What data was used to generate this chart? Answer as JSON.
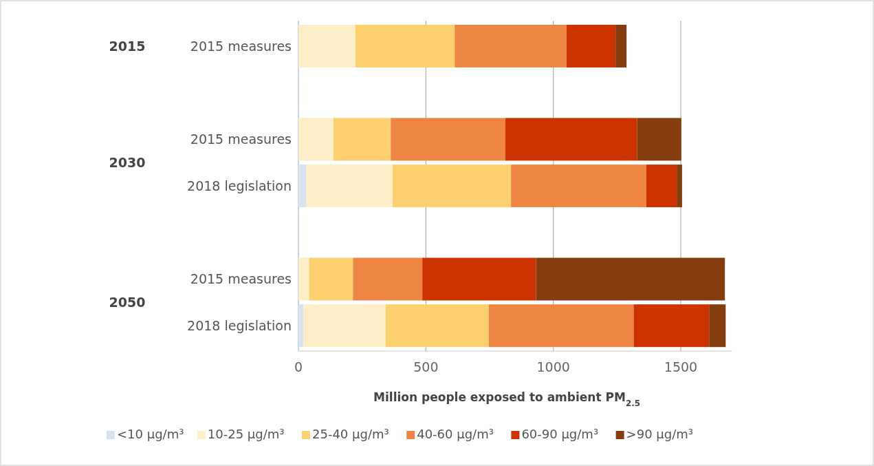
{
  "chart_data": {
    "type": "bar",
    "orientation": "horizontal",
    "stacked": true,
    "categories": [
      "2015 measures",
      "2015 measures",
      "2018 legislation",
      "2015 measures",
      "2018 legislation"
    ],
    "annotations": [
      "2015",
      "2030",
      "2050"
    ],
    "xlabel": "Million people exposed to ambient PM$_{2.5}$",
    "xlim": [
      0,
      1700
    ],
    "xticks": [
      0,
      500,
      1000,
      1500
    ],
    "grid": "x",
    "legend": "bottom",
    "series": [
      {
        "name": "<10 µg/m³",
        "color": "#d9e3ee",
        "values": [
          null,
          null,
          31,
          null,
          20
        ]
      },
      {
        "name": "10-25 µg/m³",
        "color": "#fdeec8",
        "values": [
          223,
          137,
          338,
          42,
          322
        ]
      },
      {
        "name": "25-40 µg/m³",
        "color": "#fcd06e",
        "values": [
          390,
          225,
          465,
          172,
          405
        ]
      },
      {
        "name": "40-60 µg/m³",
        "color": "#ee8542",
        "values": [
          439,
          450,
          531,
          272,
          568
        ]
      },
      {
        "name": "60-90 µg/m³",
        "color": "#cc3300",
        "values": [
          192,
          517,
          119,
          446,
          296
        ]
      },
      {
        "name": ">90 µg/m³",
        "color": "#853c0e",
        "values": [
          43,
          173,
          21,
          741,
          65
        ]
      }
    ]
  }
}
